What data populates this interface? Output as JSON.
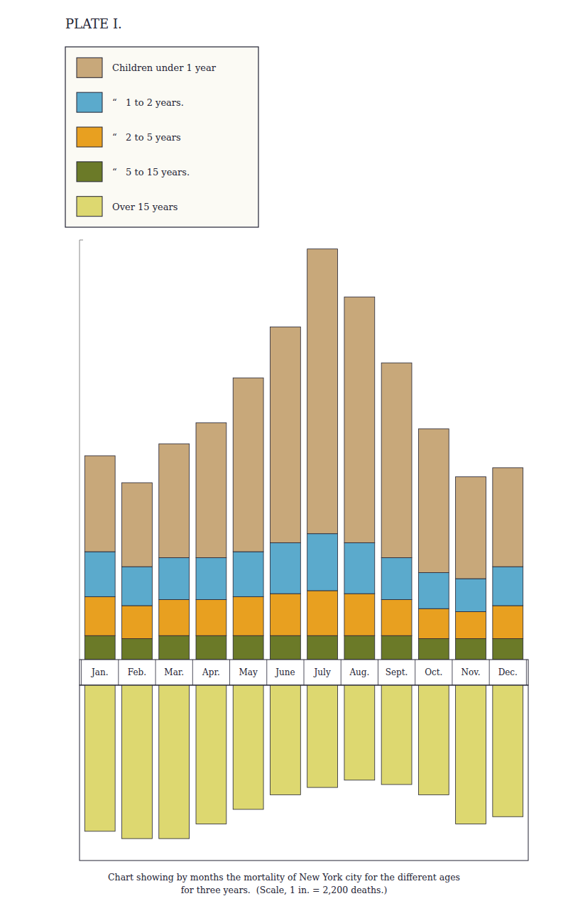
{
  "chart_data": [
    {
      "type": "bar",
      "stacked": true,
      "title": "PLATE I.",
      "categories": [
        "Jan.",
        "Feb.",
        "Mar.",
        "Apr.",
        "May",
        "June",
        "July",
        "Aug.",
        "Sept.",
        "Oct.",
        "Nov.",
        "Dec."
      ],
      "series": [
        {
          "name": "“   5 to 15 years.",
          "color": "#6B7A28",
          "values": [
            0.8,
            0.7,
            0.8,
            0.8,
            0.8,
            0.8,
            0.8,
            0.8,
            0.8,
            0.7,
            0.7,
            0.7
          ]
        },
        {
          "name": "“   2 to 5 years",
          "color": "#E8A020",
          "values": [
            1.3,
            1.1,
            1.2,
            1.2,
            1.3,
            1.4,
            1.5,
            1.4,
            1.2,
            1.0,
            0.9,
            1.1
          ]
        },
        {
          "name": "“   1 to 2 years.",
          "color": "#5BAACC",
          "values": [
            1.5,
            1.3,
            1.4,
            1.4,
            1.5,
            1.7,
            1.9,
            1.7,
            1.4,
            1.2,
            1.1,
            1.3
          ]
        },
        {
          "name": "Children under 1 year",
          "color": "#C8A87A",
          "values": [
            3.2,
            2.8,
            3.8,
            4.5,
            5.8,
            7.2,
            9.5,
            8.2,
            6.5,
            4.8,
            3.4,
            3.3
          ]
        }
      ],
      "ylim": [
        0,
        14
      ],
      "tick_labels": "x",
      "grid": false,
      "legend": "upper left"
    },
    {
      "type": "bar",
      "categories": [
        "Jan.",
        "Feb.",
        "Mar.",
        "Apr.",
        "May",
        "June",
        "July",
        "Aug.",
        "Sept.",
        "Oct.",
        "Nov.",
        "Dec."
      ],
      "series": [
        {
          "name": "Over 15 years",
          "color": "#DDD870",
          "values": [
            10.0,
            10.5,
            10.5,
            9.5,
            8.5,
            7.5,
            7.0,
            6.5,
            6.8,
            7.5,
            9.5,
            9.0
          ]
        }
      ],
      "ylim": [
        0,
        12
      ],
      "tick_labels": false,
      "grid": false,
      "legend": "upper left",
      "annotations": [
        "Chart showing by months the mortality of New York city for the different ages\nfor three years.  (Scale, 1 in. = 2,200 deaths.)"
      ]
    }
  ]
}
